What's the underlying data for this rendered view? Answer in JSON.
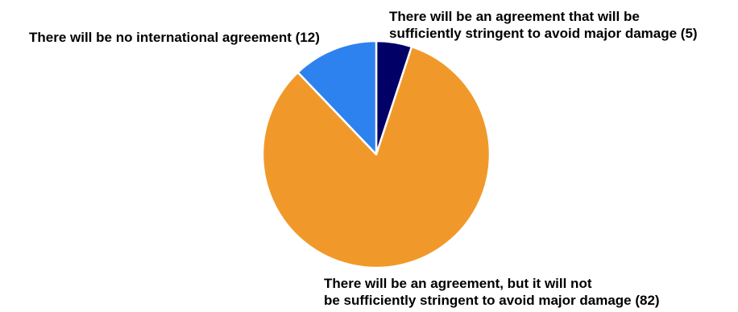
{
  "chart_data": {
    "type": "pie",
    "slices": [
      {
        "label_lines": [
          "There will be an agreement that will be",
          "sufficiently stringent to avoid major damage (5)"
        ],
        "value": 5,
        "color": "#000066"
      },
      {
        "label_lines": [
          "There will be an agreement, but it will not",
          "be sufficiently stringent to avoid major damage (82)"
        ],
        "value": 82,
        "color": "#F0992A"
      },
      {
        "label_lines": [
          "There will be no international agreement  (12)"
        ],
        "value": 12,
        "color": "#2E82F0"
      }
    ],
    "start_angle": "12 o'clock",
    "direction": "clockwise",
    "slice_border_color": "#FFFFFF"
  }
}
